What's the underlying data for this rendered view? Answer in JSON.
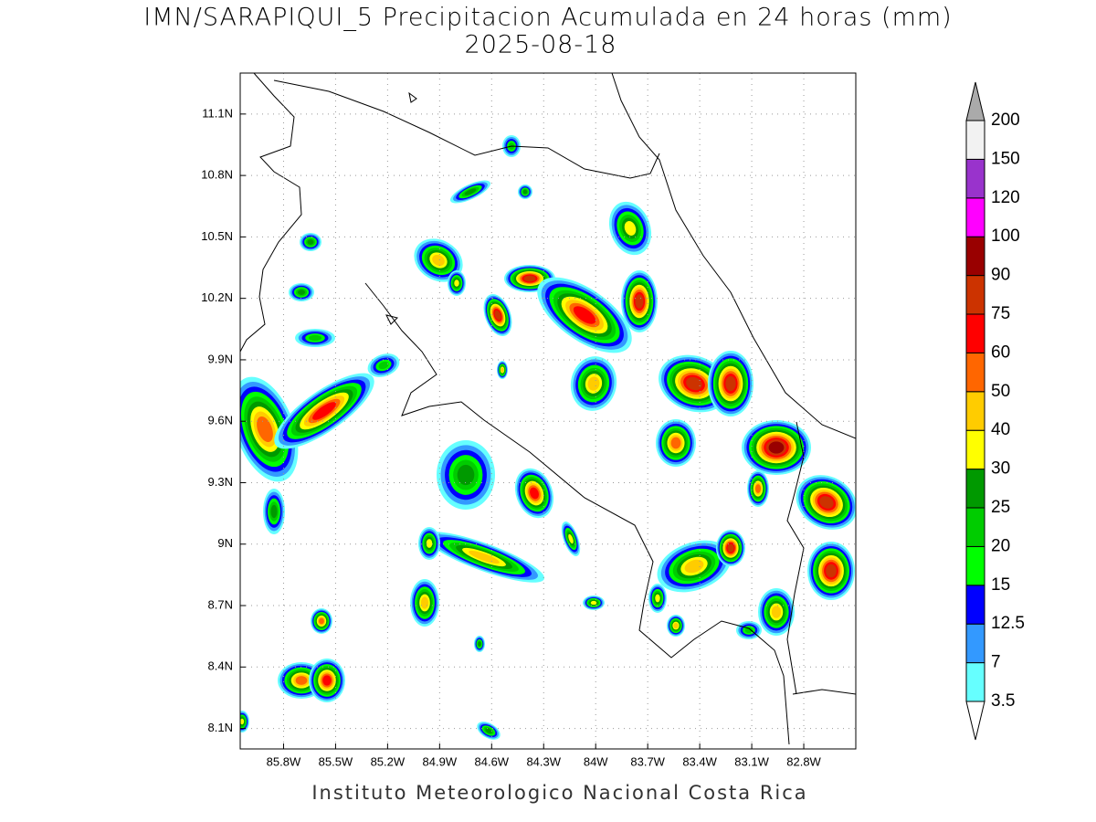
{
  "title": "IMN/SARAPIQUI_5 Precipitacion Acumulada en 24 horas (mm)",
  "subtitle": "2025-08-18",
  "footer": "Instituto Meteorologico Nacional Costa Rica",
  "map": {
    "xlim": [
      -86.05,
      -82.5
    ],
    "ylim": [
      8.0,
      11.3
    ],
    "grid": true,
    "xticks": [
      {
        "value": -85.8,
        "label": "85.8W"
      },
      {
        "value": -85.5,
        "label": "85.5W"
      },
      {
        "value": -85.2,
        "label": "85.2W"
      },
      {
        "value": -84.9,
        "label": "84.9W"
      },
      {
        "value": -84.6,
        "label": "84.6W"
      },
      {
        "value": -84.3,
        "label": "84.3W"
      },
      {
        "value": -84.0,
        "label": "84W"
      },
      {
        "value": -83.7,
        "label": "83.7W"
      },
      {
        "value": -83.4,
        "label": "83.4W"
      },
      {
        "value": -83.1,
        "label": "83.1W"
      },
      {
        "value": -82.8,
        "label": "82.8W"
      }
    ],
    "yticks": [
      {
        "value": 8.1,
        "label": "8.1N"
      },
      {
        "value": 8.4,
        "label": "8.4N"
      },
      {
        "value": 8.7,
        "label": "8.7N"
      },
      {
        "value": 9.0,
        "label": "9N"
      },
      {
        "value": 9.3,
        "label": "9.3N"
      },
      {
        "value": 9.6,
        "label": "9.6N"
      },
      {
        "value": 9.9,
        "label": "9.9N"
      },
      {
        "value": 10.2,
        "label": "10.2N"
      },
      {
        "value": 10.5,
        "label": "10.5N"
      },
      {
        "value": 10.8,
        "label": "10.8N"
      },
      {
        "value": 11.1,
        "label": "11.1N"
      }
    ]
  },
  "colorbar": {
    "levels": [
      3.5,
      7,
      12.5,
      15,
      20,
      25,
      30,
      40,
      50,
      60,
      75,
      90,
      100,
      120,
      150,
      200
    ],
    "colors": [
      "#66ffff",
      "#3399ff",
      "#0000ff",
      "#00ff00",
      "#00cc00",
      "#009900",
      "#ffff00",
      "#ffcc00",
      "#ff6600",
      "#ff0000",
      "#cc3300",
      "#990000",
      "#ff00ff",
      "#9933cc",
      "#f2f2f2"
    ],
    "over_color": "#aaaaaa",
    "under_color": "#ffffff"
  }
}
